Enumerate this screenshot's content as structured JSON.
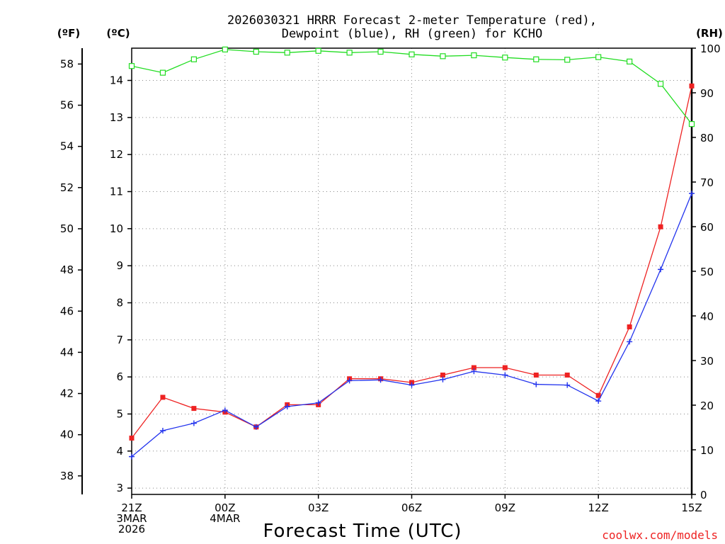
{
  "chart_data": {
    "type": "line",
    "title_lines": [
      "2026030321 HRRR Forecast 2-meter Temperature (red),",
      "Dewpoint (blue), RH (green) for KCHO"
    ],
    "xlabel": "Forecast Time (UTC)",
    "x": [
      0,
      1,
      2,
      3,
      4,
      5,
      6,
      7,
      8,
      9,
      10,
      11,
      12,
      13,
      14,
      15,
      16,
      17,
      18
    ],
    "x_ticks": [
      {
        "x": 0,
        "lines": [
          "21Z",
          "3MAR",
          "2026"
        ]
      },
      {
        "x": 3,
        "lines": [
          "00Z",
          "4MAR"
        ]
      },
      {
        "x": 6,
        "lines": [
          "03Z"
        ]
      },
      {
        "x": 9,
        "lines": [
          "06Z"
        ]
      },
      {
        "x": 12,
        "lines": [
          "09Z"
        ]
      },
      {
        "x": 15,
        "lines": [
          "12Z"
        ]
      },
      {
        "x": 18,
        "lines": [
          "15Z"
        ]
      }
    ],
    "left_c_axis": {
      "label": "(ºC)",
      "range": [
        2.83,
        14.87
      ],
      "ticks": [
        3,
        4,
        5,
        6,
        7,
        8,
        9,
        10,
        11,
        12,
        13,
        14
      ]
    },
    "left_f_axis": {
      "label": "(ºF)",
      "range": [
        37.1,
        58.77
      ],
      "ticks": [
        38,
        40,
        42,
        44,
        46,
        48,
        50,
        52,
        54,
        56,
        58
      ]
    },
    "right_rh_axis": {
      "label": "(RH)",
      "range": [
        0,
        100
      ],
      "ticks": [
        0,
        10,
        20,
        30,
        40,
        50,
        60,
        70,
        80,
        90,
        100
      ]
    },
    "series": [
      {
        "name": "Temperature",
        "color": "#ee2222",
        "marker": "filled-square",
        "values": [
          4.35,
          5.45,
          5.15,
          5.05,
          4.65,
          5.25,
          5.25,
          5.95,
          5.95,
          5.85,
          6.05,
          6.25,
          6.25,
          6.05,
          6.05,
          5.5,
          7.35,
          10.05,
          13.85
        ]
      },
      {
        "name": "Dewpoint",
        "color": "#2233ee",
        "marker": "plus",
        "values": [
          3.85,
          4.55,
          4.75,
          5.1,
          4.65,
          5.2,
          5.3,
          5.9,
          5.92,
          5.78,
          5.93,
          6.15,
          6.05,
          5.8,
          5.78,
          5.35,
          6.95,
          8.9,
          10.95
        ]
      },
      {
        "name": "RH",
        "color": "#22dd22",
        "marker": "open-square",
        "values": [
          96,
          94.5,
          97.5,
          99.7,
          99.2,
          99,
          99.4,
          99,
          99.2,
          98.6,
          98.2,
          98.4,
          97.9,
          97.5,
          97.4,
          98,
          97,
          92,
          83
        ]
      }
    ]
  },
  "watermark": "coolwx.com/models"
}
